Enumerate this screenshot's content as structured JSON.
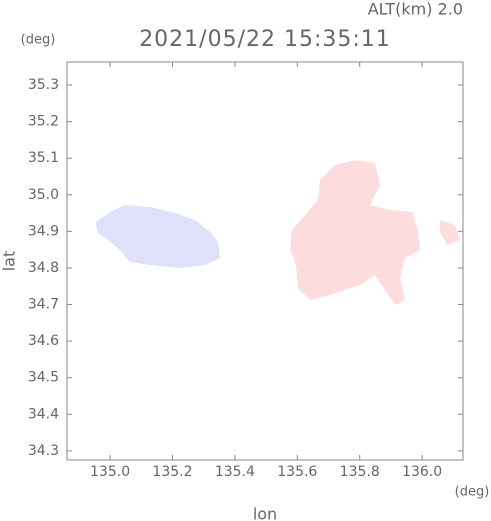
{
  "chart_data": {
    "type": "radar-map",
    "title": "2021/05/22 15:35:11",
    "subtitle": "ALT(km) 2.0",
    "x_label": "lon",
    "y_label": "lat",
    "x_unit": "(deg)",
    "y_unit": "(deg)",
    "xlim": [
      134.862,
      136.131
    ],
    "ylim": [
      34.275,
      35.363
    ],
    "xticks": [
      {
        "value": 135,
        "label": "135.0"
      },
      135.2,
      135.4,
      135.6,
      135.8,
      {
        "value": 136,
        "label": "136.0"
      }
    ],
    "yticks": [
      34.3,
      34.4,
      34.5,
      34.6,
      34.7,
      34.8,
      34.9,
      {
        "value": 35,
        "label": "35.0"
      },
      35.1,
      35.2,
      35.3
    ],
    "frame_color": "#888"
  }
}
